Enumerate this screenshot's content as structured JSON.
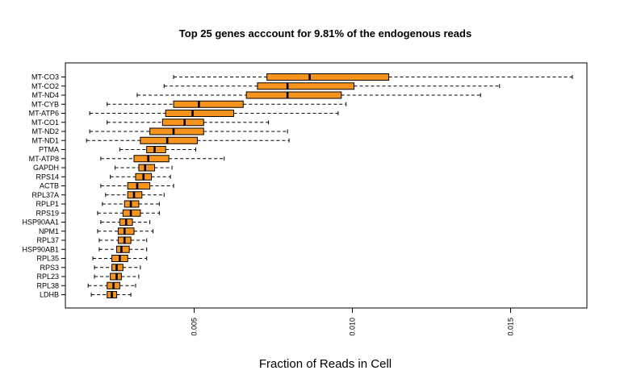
{
  "chart_data": {
    "type": "boxplot",
    "orientation": "horizontal",
    "title": "Top 25 genes acccount for 9.81% of the endogenous  reads",
    "xlabel": "Fraction of Reads in Cell",
    "ylabel": "",
    "xlim": [
      0.0,
      0.0175
    ],
    "xticks": [
      0.005,
      0.01,
      0.015
    ],
    "xtick_labels": [
      "0.005",
      "0.010",
      "0.015"
    ],
    "box_color": "#f7941d",
    "categories": [
      "MT-CO3",
      "MT-CO2",
      "MT-ND4",
      "MT-CYB",
      "MT-ATP6",
      "MT-CO1",
      "MT-ND2",
      "MT-ND1",
      "PTMA",
      "MT-ATP8",
      "GAPDH",
      "RPS14",
      "ACTB",
      "RPL37A",
      "RPLP1",
      "RPS19",
      "HSP90AA1",
      "NPM1",
      "RPL37",
      "HSP90AB1",
      "RPL35",
      "RPS3",
      "RPL23",
      "RPL38",
      "LDHB"
    ],
    "boxes": [
      {
        "min": 0.00435,
        "q1": 0.0073,
        "median": 0.00865,
        "q3": 0.01115,
        "max": 0.01695
      },
      {
        "min": 0.00405,
        "q1": 0.007,
        "median": 0.00795,
        "q3": 0.01005,
        "max": 0.01465
      },
      {
        "min": 0.0032,
        "q1": 0.00665,
        "median": 0.00795,
        "q3": 0.00965,
        "max": 0.01405
      },
      {
        "min": 0.00225,
        "q1": 0.00435,
        "median": 0.00515,
        "q3": 0.00655,
        "max": 0.0098
      },
      {
        "min": 0.0017,
        "q1": 0.0041,
        "median": 0.00495,
        "q3": 0.00625,
        "max": 0.00955
      },
      {
        "min": 0.00225,
        "q1": 0.004,
        "median": 0.0047,
        "q3": 0.0053,
        "max": 0.00735
      },
      {
        "min": 0.0017,
        "q1": 0.0036,
        "median": 0.00435,
        "q3": 0.0053,
        "max": 0.00795
      },
      {
        "min": 0.0016,
        "q1": 0.0033,
        "median": 0.00415,
        "q3": 0.0051,
        "max": 0.008
      },
      {
        "min": 0.00265,
        "q1": 0.0035,
        "median": 0.00375,
        "q3": 0.0041,
        "max": 0.00505
      },
      {
        "min": 0.00205,
        "q1": 0.0031,
        "median": 0.00355,
        "q3": 0.0042,
        "max": 0.00595
      },
      {
        "min": 0.0025,
        "q1": 0.00325,
        "median": 0.00345,
        "q3": 0.00375,
        "max": 0.0043
      },
      {
        "min": 0.00235,
        "q1": 0.00315,
        "median": 0.0034,
        "q3": 0.00365,
        "max": 0.00425
      },
      {
        "min": 0.00205,
        "q1": 0.0029,
        "median": 0.0032,
        "q3": 0.0036,
        "max": 0.00435
      },
      {
        "min": 0.0022,
        "q1": 0.0029,
        "median": 0.0031,
        "q3": 0.00335,
        "max": 0.00405
      },
      {
        "min": 0.0021,
        "q1": 0.0028,
        "median": 0.003,
        "q3": 0.00325,
        "max": 0.0039
      },
      {
        "min": 0.00195,
        "q1": 0.00275,
        "median": 0.003,
        "q3": 0.0033,
        "max": 0.0039
      },
      {
        "min": 0.00205,
        "q1": 0.00265,
        "median": 0.00285,
        "q3": 0.00305,
        "max": 0.0036
      },
      {
        "min": 0.00195,
        "q1": 0.0026,
        "median": 0.0028,
        "q3": 0.0031,
        "max": 0.0037
      },
      {
        "min": 0.002,
        "q1": 0.0026,
        "median": 0.0028,
        "q3": 0.003,
        "max": 0.0035
      },
      {
        "min": 0.002,
        "q1": 0.00255,
        "median": 0.0027,
        "q3": 0.00295,
        "max": 0.0035
      },
      {
        "min": 0.0018,
        "q1": 0.0024,
        "median": 0.00265,
        "q3": 0.0029,
        "max": 0.0035
      },
      {
        "min": 0.00185,
        "q1": 0.0024,
        "median": 0.00255,
        "q3": 0.00275,
        "max": 0.0033
      },
      {
        "min": 0.00185,
        "q1": 0.00235,
        "median": 0.00255,
        "q3": 0.0027,
        "max": 0.00325
      },
      {
        "min": 0.00165,
        "q1": 0.00225,
        "median": 0.00245,
        "q3": 0.00265,
        "max": 0.00315
      },
      {
        "min": 0.00175,
        "q1": 0.00225,
        "median": 0.0024,
        "q3": 0.00255,
        "max": 0.003
      }
    ]
  }
}
